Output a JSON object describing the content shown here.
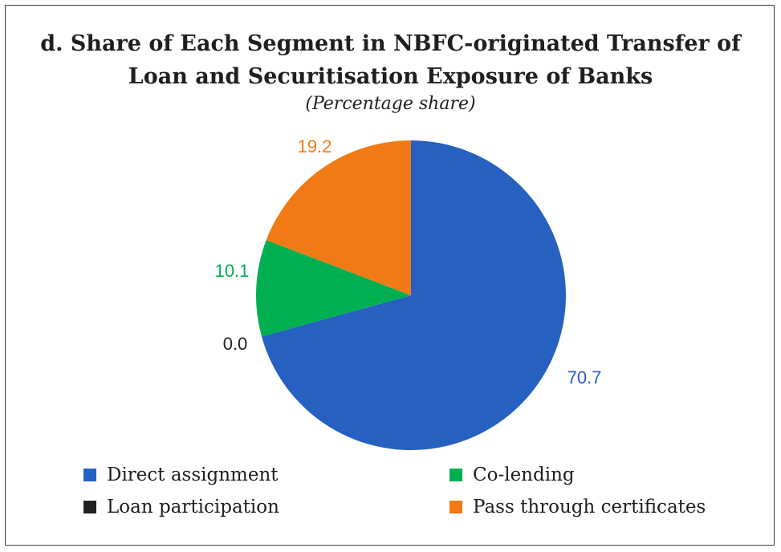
{
  "chart_data": {
    "type": "pie",
    "title_line1": "d. Share of Each Segment in NBFC-originated Transfer of",
    "title_line2": "Loan and Securitisation Exposure of Banks",
    "subtitle": "(Percentage share)",
    "slices": [
      {
        "name": "Direct assignment",
        "value": 70.7,
        "label": "70.7",
        "color": "#2660C0"
      },
      {
        "name": "Loan participation",
        "value": 0.0,
        "label": "0.0",
        "color": "#222222"
      },
      {
        "name": "Co-lending",
        "value": 10.1,
        "label": "10.1",
        "color": "#00B050"
      },
      {
        "name": "Pass through certificates",
        "value": 19.2,
        "label": "19.2",
        "color": "#F27A14"
      }
    ],
    "legend": [
      {
        "label": "Direct assignment",
        "color": "#2660C0"
      },
      {
        "label": "Co-lending",
        "color": "#00B050"
      },
      {
        "label": "Loan participation",
        "color": "#222222"
      },
      {
        "label": "Pass through certificates",
        "color": "#F27A14"
      }
    ],
    "legend_placement": "bottom"
  }
}
